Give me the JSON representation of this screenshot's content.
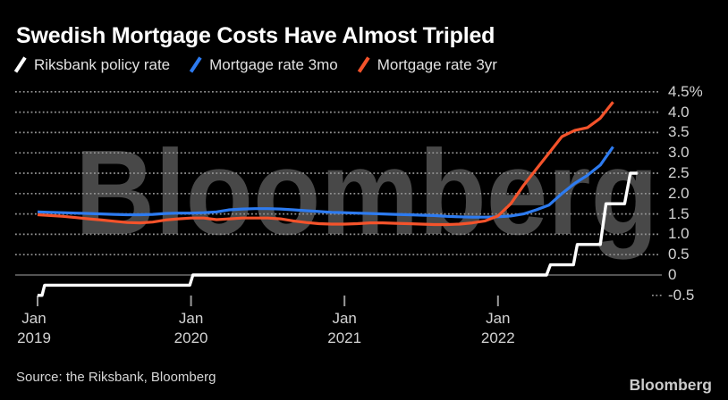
{
  "header": {
    "title": "Swedish Mortgage Costs Have Almost Tripled"
  },
  "legend": {
    "items": [
      {
        "label": "Riksbank policy rate",
        "color": "#ffffff"
      },
      {
        "label": "Mortgage rate 3mo",
        "color": "#2d7bf0"
      },
      {
        "label": "Mortgage rate 3yr",
        "color": "#f4532b"
      }
    ]
  },
  "footer": {
    "source": "Source: the Riksbank, Bloomberg",
    "logo": "Bloomberg"
  },
  "chart_data": {
    "type": "line",
    "unit": "%",
    "watermark": "Bloomberg",
    "ylim": [
      -0.5,
      4.5
    ],
    "grid": "dotted-horizontal",
    "legend_position": "top-left",
    "colors": {
      "background": "#000000",
      "gridline": "#949494",
      "zero_axis": "#6f6f6f",
      "watermark": "#484848",
      "tick": "#9a9a9a"
    },
    "y_ticks": [
      {
        "v": 4.5,
        "label": "4.5%"
      },
      {
        "v": 4.0,
        "label": "4.0"
      },
      {
        "v": 3.5,
        "label": "3.5"
      },
      {
        "v": 3.0,
        "label": "3.0"
      },
      {
        "v": 2.5,
        "label": "2.5"
      },
      {
        "v": 2.0,
        "label": "2.0"
      },
      {
        "v": 1.5,
        "label": "1.5"
      },
      {
        "v": 1.0,
        "label": "1.0"
      },
      {
        "v": 0.5,
        "label": "0.5"
      },
      {
        "v": 0,
        "label": "0"
      },
      {
        "v": -0.5,
        "label": "-0.5"
      }
    ],
    "x_ticks": [
      {
        "label_top": "Jan",
        "label_bottom": "2019",
        "month_index": 0
      },
      {
        "label_top": "Jan",
        "label_bottom": "2020",
        "month_index": 12
      },
      {
        "label_top": "Jan",
        "label_bottom": "2021",
        "month_index": 24
      },
      {
        "label_top": "Jan",
        "label_bottom": "2022",
        "month_index": 36
      }
    ],
    "series": [
      {
        "name": "Riksbank policy rate",
        "color": "#ffffff",
        "mode": "steps",
        "points": [
          [
            0,
            -0.5
          ],
          [
            0.35,
            -0.5
          ],
          [
            0.55,
            -0.25
          ],
          [
            11.9,
            -0.25
          ],
          [
            12.15,
            0
          ],
          [
            39.8,
            0
          ],
          [
            40.1,
            0.25
          ],
          [
            41.9,
            0.25
          ],
          [
            42.2,
            0.75
          ],
          [
            44.0,
            0.75
          ],
          [
            44.45,
            1.75
          ],
          [
            45.9,
            1.75
          ],
          [
            46.35,
            2.5
          ],
          [
            46.9,
            2.5
          ]
        ]
      },
      {
        "name": "Mortgage rate 3mo",
        "color": "#2d7bf0",
        "mode": "monthly",
        "start_month": 0,
        "values": [
          1.55,
          1.54,
          1.53,
          1.52,
          1.51,
          1.5,
          1.49,
          1.48,
          1.48,
          1.49,
          1.51,
          1.52,
          1.52,
          1.53,
          1.55,
          1.6,
          1.62,
          1.63,
          1.63,
          1.62,
          1.6,
          1.58,
          1.56,
          1.54,
          1.53,
          1.52,
          1.51,
          1.5,
          1.49,
          1.48,
          1.47,
          1.46,
          1.44,
          1.43,
          1.42,
          1.42,
          1.43,
          1.45,
          1.5,
          1.6,
          1.72,
          2.0,
          2.25,
          2.45,
          2.7,
          3.15
        ]
      },
      {
        "name": "Mortgage rate 3yr",
        "color": "#f4532b",
        "mode": "monthly",
        "start_month": 0,
        "values": [
          1.48,
          1.46,
          1.44,
          1.41,
          1.38,
          1.35,
          1.32,
          1.29,
          1.28,
          1.3,
          1.35,
          1.38,
          1.4,
          1.4,
          1.36,
          1.38,
          1.4,
          1.4,
          1.4,
          1.38,
          1.33,
          1.29,
          1.26,
          1.25,
          1.25,
          1.26,
          1.28,
          1.28,
          1.27,
          1.26,
          1.25,
          1.24,
          1.24,
          1.25,
          1.28,
          1.33,
          1.45,
          1.75,
          2.2,
          2.6,
          3.0,
          3.4,
          3.55,
          3.62,
          3.85,
          4.25
        ]
      }
    ]
  }
}
